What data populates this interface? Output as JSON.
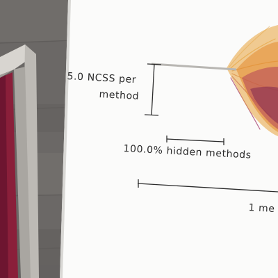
{
  "legend": {
    "ncss_label_line1": "5.0 NCSS per",
    "ncss_label_line2": "method",
    "hidden_methods_label": "100.0% hidden methods",
    "length_label_partial": "1 me"
  },
  "colors": {
    "paper": "#fbfbfa",
    "stone": "#6b6866",
    "frame": "#c9c6c1",
    "frame_inner": "#8a1f3a",
    "ink": "#2b2b2b",
    "fan_warm": "#e7a23a",
    "fan_deep": "#9c2b5e"
  }
}
